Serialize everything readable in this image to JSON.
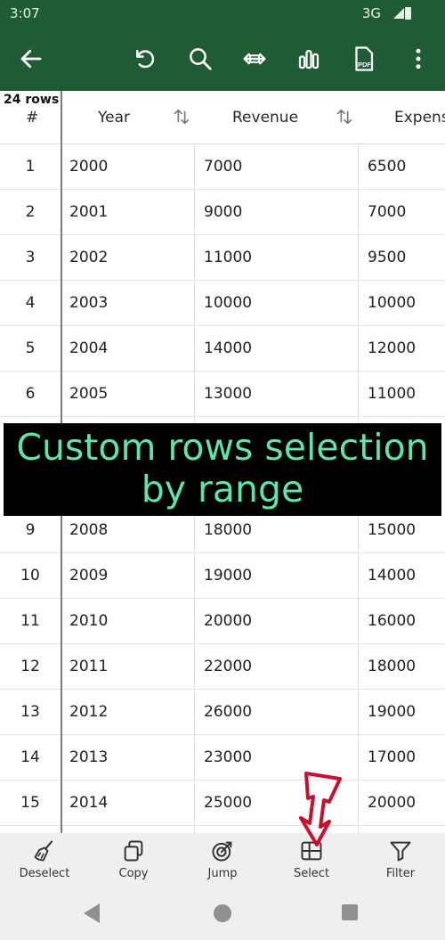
{
  "status_bar": {
    "time": "3:07",
    "network": "3G"
  },
  "toolbar": {
    "icons": [
      "back-arrow-icon",
      "undo-icon",
      "search-icon",
      "fit-width-icon",
      "chart-icon",
      "pdf-icon",
      "more-vert-icon"
    ],
    "pdf_label": "PDF"
  },
  "table": {
    "row_count_label": "24 rows",
    "columns": [
      "#",
      "Year",
      "Revenue",
      "Expens"
    ],
    "rows_top": [
      {
        "num": "1",
        "year": "2000",
        "revenue": "7000",
        "expense": "6500"
      },
      {
        "num": "2",
        "year": "2001",
        "revenue": "9000",
        "expense": "7000"
      },
      {
        "num": "3",
        "year": "2002",
        "revenue": "11000",
        "expense": "9500"
      },
      {
        "num": "4",
        "year": "2003",
        "revenue": "10000",
        "expense": "10000"
      },
      {
        "num": "5",
        "year": "2004",
        "revenue": "14000",
        "expense": "12000"
      },
      {
        "num": "6",
        "year": "2005",
        "revenue": "13000",
        "expense": "11000"
      }
    ],
    "rows_bottom": [
      {
        "num": "9",
        "year": "2008",
        "revenue": "18000",
        "expense": "15000"
      },
      {
        "num": "10",
        "year": "2009",
        "revenue": "19000",
        "expense": "14000"
      },
      {
        "num": "11",
        "year": "2010",
        "revenue": "20000",
        "expense": "16000"
      },
      {
        "num": "12",
        "year": "2011",
        "revenue": "22000",
        "expense": "18000"
      },
      {
        "num": "13",
        "year": "2012",
        "revenue": "26000",
        "expense": "19000"
      },
      {
        "num": "14",
        "year": "2013",
        "revenue": "23000",
        "expense": "17000"
      },
      {
        "num": "15",
        "year": "2014",
        "revenue": "25000",
        "expense": "20000"
      }
    ]
  },
  "overlay": {
    "line1": "Custom rows selection",
    "line2": "by range",
    "color": "#5fe3a6"
  },
  "bottom_bar": {
    "items": [
      {
        "label": "Deselect",
        "icon": "broom-icon"
      },
      {
        "label": "Copy",
        "icon": "copy-icon"
      },
      {
        "label": "Jump",
        "icon": "target-icon"
      },
      {
        "label": "Select",
        "icon": "select-range-icon"
      },
      {
        "label": "Filter",
        "icon": "filter-icon"
      }
    ]
  },
  "colors": {
    "toolbar": "#1f5c36",
    "accent_arrow": "#c8102e"
  }
}
